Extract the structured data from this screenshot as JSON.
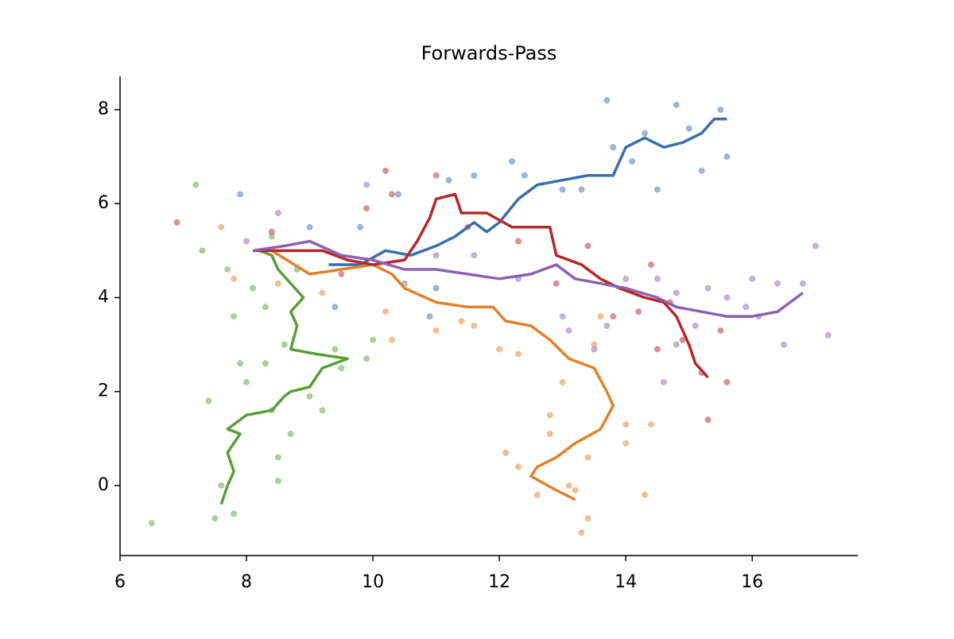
{
  "chart_data": {
    "type": "line",
    "title": "Forwards-Pass",
    "xlim": [
      6.0,
      17.67
    ],
    "ylim": [
      -1.49,
      8.71
    ],
    "xticks": [
      6,
      8,
      10,
      12,
      14,
      16
    ],
    "yticks": [
      0,
      2,
      4,
      6,
      8
    ],
    "series": [
      {
        "color": "#3a6ea8",
        "x": [
          9.3,
          9.8,
          10.2,
          10.6,
          11.0,
          11.3,
          11.6,
          11.8,
          12.0,
          12.3,
          12.6,
          13.0,
          13.4,
          13.8,
          14.0,
          14.3,
          14.6,
          14.9,
          15.2,
          15.4,
          15.6
        ],
        "y": [
          4.7,
          4.7,
          5.0,
          4.9,
          5.1,
          5.3,
          5.6,
          5.4,
          5.6,
          6.1,
          6.4,
          6.5,
          6.6,
          6.6,
          7.2,
          7.4,
          7.2,
          7.3,
          7.5,
          7.8,
          7.8
        ],
        "scatter_x": [
          7.9,
          9.0,
          9.8,
          10.4,
          11.2,
          11.6,
          12.2,
          12.4,
          13.0,
          13.3,
          13.8,
          14.1,
          14.3,
          14.5,
          14.8,
          15.0,
          15.2,
          15.5,
          15.6,
          13.7,
          11.0,
          10.9,
          9.4
        ],
        "scatter_y": [
          6.2,
          5.5,
          5.5,
          6.2,
          6.5,
          6.6,
          6.9,
          6.6,
          6.3,
          6.3,
          7.2,
          6.9,
          7.5,
          6.3,
          8.1,
          7.6,
          6.7,
          8.0,
          7.0,
          8.2,
          4.2,
          3.6,
          3.8
        ]
      },
      {
        "color": "#e1812c",
        "x": [
          8.4,
          9.0,
          9.5,
          10.0,
          10.3,
          10.5,
          11.0,
          11.5,
          11.9,
          12.1,
          12.5,
          12.8,
          13.1,
          13.5,
          13.7,
          13.8,
          13.6,
          13.2,
          12.9,
          12.6,
          12.5,
          12.9,
          13.2
        ],
        "y": [
          5.0,
          4.5,
          4.6,
          4.7,
          4.5,
          4.2,
          3.9,
          3.8,
          3.8,
          3.5,
          3.4,
          3.1,
          2.7,
          2.5,
          2.0,
          1.7,
          1.2,
          0.9,
          0.6,
          0.4,
          0.2,
          -0.1,
          -0.3
        ],
        "scatter_x": [
          7.6,
          7.8,
          8.5,
          9.2,
          10.2,
          10.3,
          11.0,
          11.4,
          11.6,
          12.0,
          12.3,
          12.1,
          12.3,
          12.6,
          12.8,
          12.8,
          13.0,
          13.1,
          13.2,
          13.4,
          13.3,
          13.5,
          13.6,
          14.0,
          14.0,
          14.3,
          14.4,
          13.4
        ],
        "scatter_y": [
          5.5,
          4.4,
          4.3,
          4.1,
          3.7,
          3.1,
          3.3,
          3.5,
          3.4,
          2.9,
          2.8,
          0.7,
          0.4,
          -0.2,
          1.1,
          1.5,
          2.2,
          0.0,
          -0.1,
          -0.7,
          -1.0,
          3.0,
          3.6,
          1.3,
          0.9,
          -0.2,
          1.3,
          0.6
        ]
      },
      {
        "color": "#5a9e3a",
        "x": [
          7.6,
          7.7,
          7.8,
          7.7,
          7.9,
          7.7,
          8.0,
          8.4,
          8.6,
          8.7,
          9.0,
          9.2,
          9.6,
          9.1,
          8.7,
          8.8,
          8.7,
          8.9,
          8.7,
          8.5,
          8.4,
          8.2
        ],
        "y": [
          -0.4,
          0.0,
          0.3,
          0.7,
          1.1,
          1.2,
          1.5,
          1.6,
          1.9,
          2.0,
          2.1,
          2.5,
          2.7,
          2.8,
          2.9,
          3.4,
          3.7,
          4.0,
          4.3,
          4.6,
          4.9,
          5.0
        ],
        "scatter_x": [
          6.5,
          7.2,
          7.3,
          7.4,
          7.5,
          7.6,
          7.7,
          7.8,
          7.8,
          7.9,
          8.0,
          8.1,
          8.3,
          8.4,
          8.5,
          8.5,
          8.6,
          8.7,
          8.8,
          9.0,
          9.2,
          9.4,
          9.5,
          9.9,
          10.0,
          8.4,
          8.3
        ],
        "scatter_y": [
          -0.8,
          6.4,
          5.0,
          1.8,
          -0.7,
          0.0,
          4.6,
          3.6,
          -0.6,
          2.6,
          2.2,
          4.2,
          2.6,
          1.6,
          0.6,
          0.1,
          3.0,
          1.1,
          4.6,
          1.9,
          1.6,
          2.9,
          2.5,
          2.7,
          3.1,
          5.3,
          3.8
        ]
      },
      {
        "color": "#b5282b",
        "x": [
          8.1,
          8.7,
          9.2,
          9.6,
          10.0,
          10.5,
          10.7,
          10.9,
          11.0,
          11.3,
          11.4,
          11.8,
          12.2,
          12.8,
          12.9,
          13.3,
          13.6,
          13.9,
          14.3,
          14.6,
          14.8,
          15.0,
          15.1,
          15.3
        ],
        "y": [
          5.0,
          5.0,
          5.0,
          4.8,
          4.7,
          4.8,
          5.2,
          5.7,
          6.1,
          6.2,
          5.8,
          5.8,
          5.5,
          5.5,
          4.9,
          4.7,
          4.4,
          4.2,
          4.0,
          3.9,
          3.6,
          3.0,
          2.6,
          2.3
        ],
        "scatter_x": [
          6.9,
          8.4,
          9.5,
          9.9,
          10.2,
          10.3,
          11.0,
          11.5,
          12.3,
          12.9,
          13.4,
          13.8,
          14.2,
          14.4,
          14.5,
          14.9,
          15.2,
          15.5,
          15.6,
          15.3,
          14.7
        ],
        "scatter_y": [
          5.6,
          5.4,
          4.5,
          5.9,
          6.7,
          6.2,
          6.6,
          5.5,
          5.2,
          4.3,
          5.1,
          3.6,
          3.7,
          4.7,
          2.9,
          3.1,
          2.4,
          3.3,
          2.2,
          1.4,
          3.9
        ]
      },
      {
        "color": "#8c62b0",
        "x": [
          8.1,
          8.6,
          9.0,
          9.5,
          10.0,
          10.5,
          11.0,
          11.5,
          12.0,
          12.5,
          12.9,
          13.2,
          13.6,
          14.0,
          14.5,
          14.8,
          15.2,
          15.6,
          16.0,
          16.4,
          16.6,
          16.8
        ],
        "y": [
          5.0,
          5.1,
          5.2,
          4.9,
          4.8,
          4.6,
          4.6,
          4.5,
          4.4,
          4.5,
          4.7,
          4.4,
          4.3,
          4.2,
          4.0,
          3.8,
          3.7,
          3.6,
          3.6,
          3.7,
          3.9,
          4.1
        ],
        "scatter_x": [
          8.0,
          8.5,
          9.9,
          10.5,
          11.0,
          11.6,
          12.3,
          13.0,
          13.1,
          13.5,
          13.7,
          14.0,
          14.5,
          14.8,
          14.8,
          15.1,
          15.3,
          15.6,
          15.9,
          16.1,
          16.4,
          16.5,
          16.8,
          17.0,
          17.2,
          16.0,
          14.6
        ],
        "scatter_y": [
          5.2,
          5.8,
          6.4,
          4.3,
          4.9,
          4.9,
          4.4,
          3.6,
          3.3,
          2.9,
          3.4,
          4.4,
          4.4,
          4.1,
          3.0,
          3.4,
          4.2,
          4.0,
          3.8,
          3.6,
          4.3,
          3.0,
          4.3,
          5.1,
          3.2,
          4.4,
          2.2
        ]
      }
    ]
  }
}
